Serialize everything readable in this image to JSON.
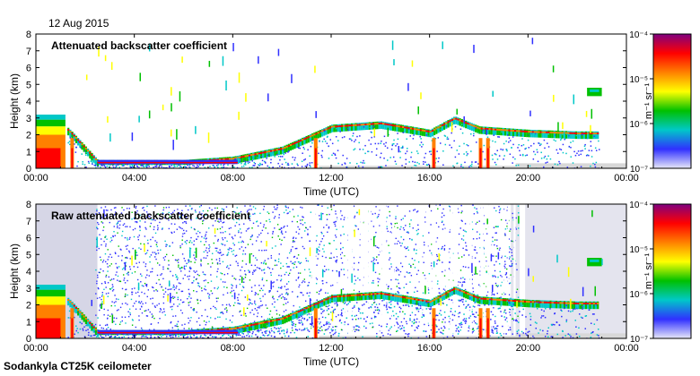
{
  "date_label": "12 Aug 2015",
  "footer_label": "Sodankyla CT25K ceilometer",
  "chart_data": [
    {
      "type": "heatmap",
      "title": "Attenuated backscatter coefficient",
      "xlabel": "Time (UTC)",
      "ylabel": "Height (km)",
      "x_ticks": [
        "00:00",
        "04:00",
        "08:00",
        "12:00",
        "16:00",
        "20:00",
        "00:00"
      ],
      "xlim_hours": [
        0,
        24
      ],
      "ylim": [
        0,
        8
      ],
      "y_ticks": [
        0,
        1,
        2,
        3,
        4,
        5,
        6,
        7,
        8
      ],
      "colorbar": {
        "unit": "m⁻¹ sr⁻¹",
        "scale": "log",
        "range": [
          1e-07,
          0.0001
        ],
        "tick_labels": [
          "10⁻⁴",
          "10⁻⁵",
          "10⁻⁶",
          "10⁻⁷"
        ],
        "colormap": [
          "#e8e8f8",
          "#3030ff",
          "#00c8c8",
          "#00c000",
          "#ffff00",
          "#ff8000",
          "#ff0000",
          "#800080"
        ]
      },
      "features": {
        "noise_band_height_km": [
          0,
          0.3
        ],
        "noise_band_color": "#d8d8d8",
        "boundary_layer": [
          {
            "t": 0.0,
            "h": 2.9
          },
          {
            "t": 0.8,
            "h": 3.0
          },
          {
            "t": 1.5,
            "h": 2.0
          },
          {
            "t": 2.5,
            "h": 0.4
          },
          {
            "t": 6.0,
            "h": 0.4
          },
          {
            "t": 8.0,
            "h": 0.6
          },
          {
            "t": 10.0,
            "h": 1.2
          },
          {
            "t": 12.0,
            "h": 2.5
          },
          {
            "t": 14.0,
            "h": 2.7
          },
          {
            "t": 16.0,
            "h": 2.2
          },
          {
            "t": 17.0,
            "h": 3.0
          },
          {
            "t": 18.0,
            "h": 2.4
          },
          {
            "t": 20.0,
            "h": 2.2
          },
          {
            "t": 22.0,
            "h": 2.1
          }
        ],
        "high_cloud": {
          "t": [
            22.4,
            23.0
          ],
          "h": [
            4.3,
            4.8
          ]
        }
      }
    },
    {
      "type": "heatmap",
      "title": "Raw attenuated backscatter coefficient",
      "xlabel": "Time (UTC)",
      "ylabel": "Height (km)",
      "x_ticks": [
        "00:00",
        "04:00",
        "08:00",
        "12:00",
        "16:00",
        "20:00",
        "00:00"
      ],
      "xlim_hours": [
        0,
        24
      ],
      "ylim": [
        0,
        8
      ],
      "y_ticks": [
        0,
        1,
        2,
        3,
        4,
        5,
        6,
        7,
        8
      ],
      "colorbar": {
        "unit": "m⁻¹ sr⁻¹",
        "scale": "log",
        "range": [
          1e-07,
          0.0001
        ],
        "tick_labels": [
          "10⁻⁴",
          "10⁻⁵",
          "10⁻⁶",
          "10⁻⁷"
        ],
        "colormap": [
          "#e8e8f8",
          "#3030ff",
          "#00c8c8",
          "#00c000",
          "#ffff00",
          "#ff8000",
          "#ff0000",
          "#800080"
        ]
      },
      "features": {
        "background_noise": true,
        "noise_band_color": "#d8d8d8",
        "boundary_layer": [
          {
            "t": 0.0,
            "h": 2.9
          },
          {
            "t": 0.8,
            "h": 3.0
          },
          {
            "t": 1.5,
            "h": 2.0
          },
          {
            "t": 2.5,
            "h": 0.4
          },
          {
            "t": 6.0,
            "h": 0.4
          },
          {
            "t": 8.0,
            "h": 0.6
          },
          {
            "t": 10.0,
            "h": 1.2
          },
          {
            "t": 12.0,
            "h": 2.5
          },
          {
            "t": 14.0,
            "h": 2.7
          },
          {
            "t": 16.0,
            "h": 2.2
          },
          {
            "t": 17.0,
            "h": 3.0
          },
          {
            "t": 18.0,
            "h": 2.4
          },
          {
            "t": 20.0,
            "h": 2.2
          },
          {
            "t": 22.0,
            "h": 2.1
          }
        ],
        "high_cloud": {
          "t": [
            22.4,
            23.0
          ],
          "h": [
            4.3,
            4.8
          ]
        }
      }
    }
  ]
}
